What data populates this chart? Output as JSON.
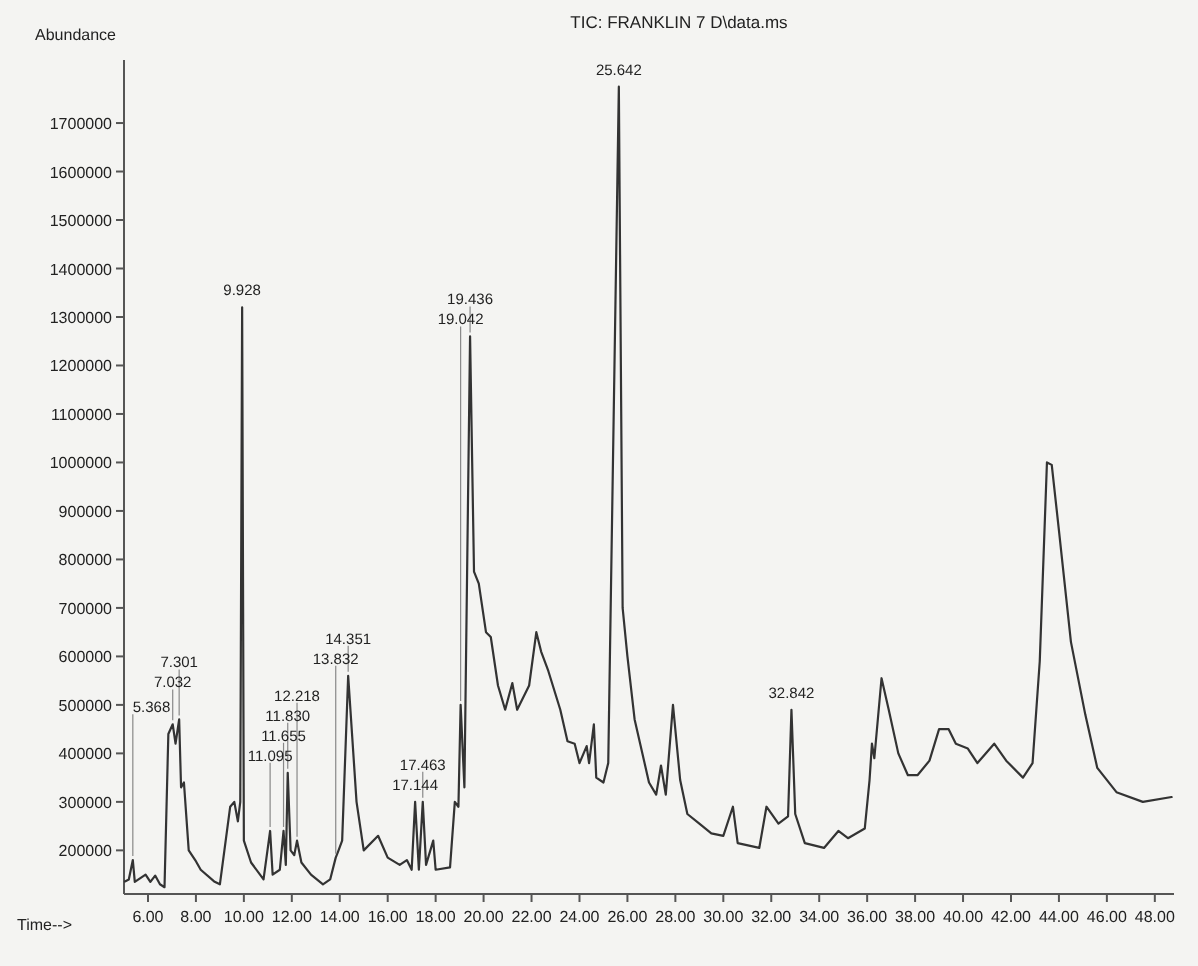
{
  "chart_data": {
    "type": "line",
    "title": "TIC: FRANKLIN 7 D\\data.ms",
    "xlabel": "Time-->",
    "ylabel": "Abundance",
    "xlim": [
      5,
      48.8
    ],
    "ylim": [
      110000,
      1830000
    ],
    "xticks": [
      {
        "value": 6,
        "label": "6.00"
      },
      {
        "value": 8,
        "label": "8.00"
      },
      {
        "value": 10,
        "label": "10.00"
      },
      {
        "value": 12,
        "label": "12.00"
      },
      {
        "value": 14,
        "label": "14.00"
      },
      {
        "value": 16,
        "label": "16.00"
      },
      {
        "value": 18,
        "label": "18.00"
      },
      {
        "value": 20,
        "label": "20.00"
      },
      {
        "value": 22,
        "label": "22.00"
      },
      {
        "value": 24,
        "label": "24.00"
      },
      {
        "value": 26,
        "label": "26.00"
      },
      {
        "value": 28,
        "label": "28.00"
      },
      {
        "value": 30,
        "label": "30.00"
      },
      {
        "value": 32,
        "label": "32.00"
      },
      {
        "value": 34,
        "label": "34.00"
      },
      {
        "value": 36,
        "label": "36.00"
      },
      {
        "value": 38,
        "label": "38.00"
      },
      {
        "value": 40,
        "label": "40.00"
      },
      {
        "value": 42,
        "label": "42.00"
      },
      {
        "value": 44,
        "label": "44.00"
      },
      {
        "value": 46,
        "label": "46.00"
      },
      {
        "value": 48,
        "label": "48.00"
      }
    ],
    "yticks": [
      200000,
      300000,
      400000,
      500000,
      600000,
      700000,
      800000,
      900000,
      1000000,
      1100000,
      1200000,
      1300000,
      1400000,
      1500000,
      1600000,
      1700000
    ],
    "grid": false,
    "marker": "none",
    "line_style": "solid",
    "x": [
      5.04,
      5.2,
      5.368,
      5.45,
      5.9,
      6.1,
      6.3,
      6.5,
      6.69,
      6.85,
      7.032,
      7.15,
      7.301,
      7.38,
      7.5,
      7.7,
      7.97,
      8.2,
      8.76,
      9.0,
      9.43,
      9.6,
      9.75,
      9.85,
      9.928,
      10.0,
      10.3,
      10.82,
      11.095,
      11.2,
      11.5,
      11.655,
      11.75,
      11.83,
      11.95,
      12.1,
      12.218,
      12.4,
      12.8,
      13.3,
      13.6,
      13.832,
      13.95,
      14.1,
      14.351,
      14.7,
      15.0,
      15.6,
      16.0,
      16.5,
      16.8,
      17.0,
      17.144,
      17.3,
      17.463,
      17.6,
      17.9,
      18.0,
      18.6,
      18.8,
      18.95,
      19.042,
      19.2,
      19.436,
      19.6,
      19.8,
      20.1,
      20.3,
      20.6,
      20.9,
      21.2,
      21.4,
      21.9,
      22.2,
      22.4,
      22.7,
      23.2,
      23.5,
      23.8,
      24.0,
      24.3,
      24.4,
      24.6,
      24.7,
      25.0,
      25.2,
      25.642,
      25.8,
      26.0,
      26.3,
      26.9,
      27.2,
      27.4,
      27.6,
      27.9,
      28.2,
      28.5,
      29.0,
      29.5,
      30.0,
      30.4,
      30.6,
      31.5,
      31.8,
      32.3,
      32.7,
      32.842,
      33.0,
      33.4,
      34.2,
      34.8,
      35.2,
      35.9,
      36.1,
      36.2,
      36.3,
      36.6,
      36.9,
      37.3,
      37.7,
      38.1,
      38.6,
      39.0,
      39.4,
      39.7,
      40.2,
      40.6,
      41.3,
      41.8,
      42.5,
      42.9,
      43.2,
      43.5,
      43.7,
      44.0,
      44.5,
      45.1,
      45.6,
      46.4,
      47.5,
      48.7
    ],
    "series": [
      {
        "color": "#333333",
        "values": [
          136000,
          140000,
          180000,
          135000,
          150000,
          135000,
          148000,
          130000,
          124000,
          440000,
          460000,
          420000,
          470000,
          330000,
          340000,
          200000,
          180000,
          160000,
          136000,
          130000,
          290000,
          300000,
          260000,
          300000,
          1320000,
          220000,
          175000,
          140000,
          240000,
          150000,
          160000,
          240000,
          170000,
          360000,
          200000,
          190000,
          220000,
          175000,
          150000,
          130000,
          140000,
          185000,
          200000,
          220000,
          560000,
          300000,
          200000,
          230000,
          185000,
          170000,
          180000,
          160000,
          300000,
          160000,
          300000,
          170000,
          220000,
          160000,
          165000,
          300000,
          290000,
          500000,
          330000,
          1260000,
          775000,
          750000,
          650000,
          640000,
          540000,
          490000,
          545000,
          490000,
          540000,
          650000,
          610000,
          570000,
          490000,
          425000,
          420000,
          380000,
          415000,
          380000,
          460000,
          350000,
          340000,
          380000,
          1775000,
          700000,
          600000,
          470000,
          340000,
          315000,
          375000,
          315000,
          500000,
          345000,
          275000,
          255000,
          235000,
          230000,
          290000,
          215000,
          205000,
          290000,
          255000,
          270000,
          490000,
          275000,
          215000,
          205000,
          240000,
          225000,
          245000,
          345000,
          420000,
          390000,
          555000,
          490000,
          400000,
          355000,
          355000,
          385000,
          450000,
          450000,
          420000,
          410000,
          380000,
          420000,
          385000,
          350000,
          380000,
          590000,
          1000000,
          995000,
          860000,
          630000,
          480000,
          370000,
          320000,
          300000,
          310000
        ]
      }
    ],
    "annotations": [
      {
        "text": "5.368",
        "x": 5.368,
        "y": 180000
      },
      {
        "text": "7.032",
        "x": 7.032,
        "y": 460000
      },
      {
        "text": "7.301",
        "x": 7.301,
        "y": 470000
      },
      {
        "text": "9.928",
        "x": 9.928,
        "y": 1320000
      },
      {
        "text": "11.095",
        "x": 11.095,
        "y": 240000
      },
      {
        "text": "11.655",
        "x": 11.655,
        "y": 240000
      },
      {
        "text": "11.830",
        "x": 11.83,
        "y": 360000
      },
      {
        "text": "12.218",
        "x": 12.218,
        "y": 220000
      },
      {
        "text": "13.832",
        "x": 13.832,
        "y": 185000
      },
      {
        "text": "14.351",
        "x": 14.351,
        "y": 560000
      },
      {
        "text": "17.144",
        "x": 17.144,
        "y": 300000
      },
      {
        "text": "17.463",
        "x": 17.463,
        "y": 300000
      },
      {
        "text": "19.042",
        "x": 19.042,
        "y": 500000
      },
      {
        "text": "19.436",
        "x": 19.436,
        "y": 1260000
      },
      {
        "text": "25.642",
        "x": 25.642,
        "y": 1775000
      },
      {
        "text": "32.842",
        "x": 32.842,
        "y": 490000
      }
    ]
  }
}
